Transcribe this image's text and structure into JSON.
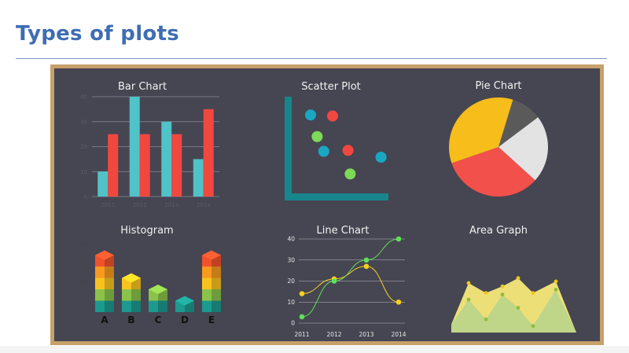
{
  "slide": {
    "title": "Types of plots"
  },
  "colors": {
    "title": "#3f6db3",
    "board_bg": "#464552",
    "board_frame": "#c7a06a",
    "teal": "#4fc3c8",
    "red": "#f2473f",
    "yellow": "#f5c518",
    "gray": "#5a5a5a",
    "light_gray": "#e3e3e3",
    "green": "#5fe05a"
  },
  "chart_data": [
    {
      "type": "bar",
      "title": "Bar Chart",
      "categories": [
        "2011",
        "2012",
        "2013",
        "2014"
      ],
      "series": [
        {
          "color": "#4fc3c8",
          "values": [
            10,
            40,
            30,
            15
          ]
        },
        {
          "color": "#f2473f",
          "values": [
            25,
            25,
            25,
            35
          ]
        }
      ],
      "ylim": [
        0,
        40
      ],
      "yticks": [
        0,
        10,
        20,
        30,
        40
      ],
      "grid": true
    },
    {
      "type": "scatter",
      "title": "Scatter Plot",
      "points": [
        {
          "x": 1.0,
          "y": 8.3,
          "color": "#1aa7c2"
        },
        {
          "x": 2.0,
          "y": 8.2,
          "color": "#f2473f"
        },
        {
          "x": 1.3,
          "y": 6.1,
          "color": "#7ed957"
        },
        {
          "x": 1.6,
          "y": 4.6,
          "color": "#1aa7c2"
        },
        {
          "x": 2.7,
          "y": 4.7,
          "color": "#f2473f"
        },
        {
          "x": 2.8,
          "y": 2.3,
          "color": "#7ed957"
        },
        {
          "x": 4.2,
          "y": 4.0,
          "color": "#1aa7c2"
        }
      ]
    },
    {
      "type": "pie",
      "title": "Pie Chart",
      "slices": [
        {
          "value": 10,
          "color": "#5a5a5a"
        },
        {
          "value": 22,
          "color": "#e3e3e3"
        },
        {
          "value": 33,
          "color": "#f2504b"
        },
        {
          "value": 35,
          "color": "#f7bd1a"
        }
      ]
    },
    {
      "type": "bar",
      "title": "Histogram",
      "categories": [
        "A",
        "B",
        "C",
        "D",
        "E"
      ],
      "values": [
        5,
        3,
        2,
        1,
        5
      ],
      "layer_colors": [
        "#1d9a8f",
        "#8bc34a",
        "#f9c31f",
        "#f79a1f",
        "#f0522c"
      ]
    },
    {
      "type": "line",
      "title": "Line Chart",
      "x": [
        "2011",
        "2012",
        "2013",
        "2014"
      ],
      "series": [
        {
          "color": "#f4d21f",
          "values": [
            14,
            21,
            27,
            10
          ]
        },
        {
          "color": "#5fe05a",
          "values": [
            3,
            20,
            30,
            40
          ]
        }
      ],
      "ylim": [
        0,
        40
      ],
      "yticks": [
        0,
        10,
        20,
        30,
        40
      ],
      "grid": true
    },
    {
      "type": "area",
      "title": "Area Graph",
      "x": [
        0,
        1,
        2,
        3,
        4,
        5,
        6,
        7
      ],
      "series": [
        {
          "color": "#f7e87a",
          "values": [
            5,
            30,
            24,
            28,
            33,
            24,
            31,
            0
          ]
        },
        {
          "color": "#b9d48a",
          "values": [
            5,
            20,
            8,
            23,
            15,
            4,
            26,
            0
          ]
        }
      ]
    }
  ]
}
